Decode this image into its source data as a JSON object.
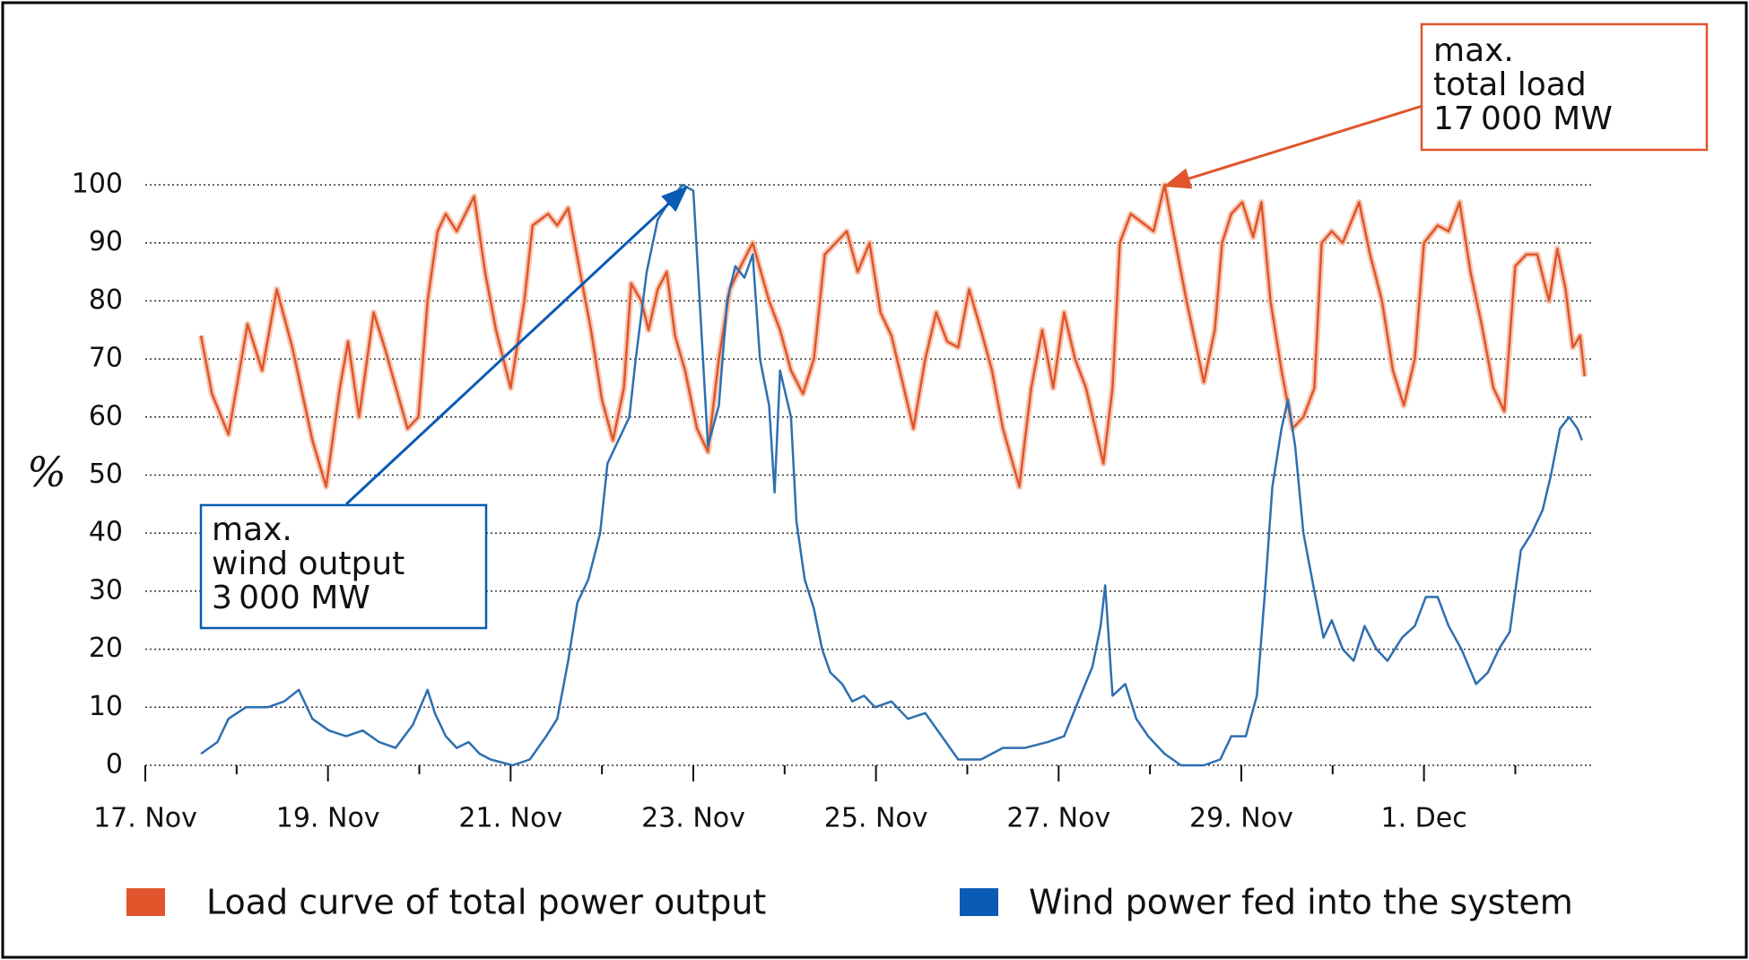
{
  "chart_data": {
    "type": "line",
    "ylabel": "%",
    "xlim": [
      17,
      32.85
    ],
    "xticks": [
      {
        "value": 17,
        "label": "17. Nov"
      },
      {
        "value": 19,
        "label": "19. Nov"
      },
      {
        "value": 21,
        "label": "21. Nov"
      },
      {
        "value": 23,
        "label": "23. Nov"
      },
      {
        "value": 25,
        "label": "25. Nov"
      },
      {
        "value": 27,
        "label": "27. Nov"
      },
      {
        "value": 29,
        "label": "29. Nov"
      },
      {
        "value": 31,
        "label": "1. Dec"
      }
    ],
    "x_minor_ticks": [
      18,
      20,
      22,
      24,
      26,
      28,
      30,
      32
    ],
    "ylim": [
      0,
      100
    ],
    "yticks": [
      0,
      10,
      20,
      30,
      40,
      50,
      60,
      70,
      80,
      90,
      100
    ],
    "grid": true,
    "legend": "bottom",
    "series": [
      {
        "name": "Load curve of total power output",
        "color": "#e0552b",
        "x": [
          17.61,
          17.73,
          17.91,
          18.12,
          18.28,
          18.44,
          18.61,
          18.83,
          18.98,
          19.13,
          19.22,
          19.34,
          19.5,
          19.62,
          19.87,
          19.99,
          20.09,
          20.2,
          20.29,
          20.41,
          20.6,
          20.72,
          20.84,
          21.0,
          21.15,
          21.24,
          21.41,
          21.51,
          21.63,
          21.76,
          21.88,
          22.0,
          22.12,
          22.24,
          22.32,
          22.43,
          22.51,
          22.61,
          22.71,
          22.8,
          22.91,
          23.04,
          23.16,
          23.28,
          23.4,
          23.52,
          23.65,
          23.83,
          23.95,
          24.07,
          24.2,
          24.32,
          24.44,
          24.56,
          24.68,
          24.8,
          24.93,
          25.05,
          25.17,
          25.29,
          25.41,
          25.54,
          25.66,
          25.78,
          25.9,
          26.02,
          26.15,
          26.27,
          26.39,
          26.57,
          26.7,
          26.82,
          26.94,
          27.06,
          27.18,
          27.3,
          27.49,
          27.59,
          27.67,
          27.79,
          28.04,
          28.16,
          28.28,
          28.4,
          28.59,
          28.71,
          28.79,
          28.89,
          29.01,
          29.13,
          29.22,
          29.32,
          29.44,
          29.56,
          29.68,
          29.8,
          29.88,
          29.99,
          30.11,
          30.29,
          30.41,
          30.54,
          30.66,
          30.78,
          30.9,
          31.0,
          31.15,
          31.27,
          31.39,
          31.51,
          31.63,
          31.76,
          31.88,
          32.0,
          32.12,
          32.24,
          32.37,
          32.46,
          32.55,
          32.63,
          32.71,
          32.76
        ],
        "values": [
          74,
          64,
          57,
          76,
          68,
          82,
          72,
          56,
          48,
          65,
          73,
          60,
          78,
          72,
          58,
          60,
          80,
          92,
          95,
          92,
          98,
          85,
          75,
          65,
          80,
          93,
          95,
          93,
          96,
          85,
          75,
          63,
          56,
          65,
          83,
          80,
          75,
          82,
          85,
          74,
          68,
          58,
          54,
          70,
          82,
          86,
          90,
          80,
          75,
          68,
          64,
          70,
          88,
          90,
          92,
          85,
          90,
          78,
          74,
          66,
          58,
          70,
          78,
          73,
          72,
          82,
          75,
          68,
          58,
          48,
          65,
          75,
          65,
          78,
          70,
          65,
          52,
          65,
          90,
          95,
          92,
          100,
          90,
          80,
          66,
          75,
          90,
          95,
          97,
          91,
          97,
          80,
          68,
          58,
          60,
          65,
          90,
          92,
          90,
          97,
          88,
          80,
          68,
          62,
          70,
          90,
          93,
          92,
          97,
          85,
          76,
          65,
          61,
          86,
          88,
          88,
          80,
          89,
          82,
          72,
          74,
          67
        ]
      },
      {
        "name": "Wind power fed into the system",
        "color": "#2e6fb0",
        "x": [
          17.61,
          17.79,
          17.91,
          18.1,
          18.34,
          18.52,
          18.68,
          18.83,
          19.01,
          19.2,
          19.38,
          19.56,
          19.74,
          19.93,
          20.09,
          20.17,
          20.29,
          20.41,
          20.54,
          20.66,
          20.78,
          21.02,
          21.21,
          21.39,
          21.51,
          21.63,
          21.73,
          21.85,
          21.98,
          22.06,
          22.18,
          22.3,
          22.37,
          22.49,
          22.61,
          22.73,
          22.88,
          23.0,
          23.07,
          23.16,
          23.28,
          23.37,
          23.46,
          23.56,
          23.65,
          23.73,
          23.83,
          23.89,
          23.95,
          24.07,
          24.13,
          24.22,
          24.32,
          24.41,
          24.5,
          24.63,
          24.74,
          24.87,
          24.99,
          25.17,
          25.35,
          25.54,
          25.72,
          25.9,
          26.15,
          26.39,
          26.63,
          26.88,
          27.06,
          27.24,
          27.37,
          27.46,
          27.51,
          27.59,
          27.73,
          27.85,
          27.98,
          28.16,
          28.34,
          28.59,
          28.77,
          28.89,
          29.05,
          29.17,
          29.26,
          29.34,
          29.44,
          29.51,
          29.59,
          29.68,
          29.8,
          29.9,
          29.99,
          30.11,
          30.23,
          30.35,
          30.48,
          30.6,
          30.76,
          30.9,
          31.02,
          31.15,
          31.27,
          31.41,
          31.57,
          31.7,
          31.82,
          31.94,
          32.06,
          32.18,
          32.3,
          32.39,
          32.49,
          32.59,
          32.68,
          32.73
        ],
        "values": [
          2,
          4,
          8,
          10,
          10,
          11,
          13,
          8,
          6,
          5,
          6,
          4,
          3,
          7,
          13,
          9,
          5,
          3,
          4,
          2,
          1,
          0,
          1,
          5,
          8,
          18,
          28,
          32,
          40,
          52,
          56,
          60,
          70,
          85,
          94,
          97,
          100,
          99,
          80,
          55,
          62,
          80,
          86,
          84,
          88,
          70,
          62,
          47,
          68,
          60,
          42,
          32,
          27,
          20,
          16,
          14,
          11,
          12,
          10,
          11,
          8,
          9,
          5,
          1,
          1,
          3,
          3,
          4,
          5,
          12,
          17,
          24,
          31,
          12,
          14,
          8,
          5,
          2,
          0,
          0,
          1,
          5,
          5,
          12,
          30,
          48,
          58,
          63,
          55,
          40,
          30,
          22,
          25,
          20,
          18,
          24,
          20,
          18,
          22,
          24,
          29,
          29,
          24,
          20,
          14,
          16,
          20,
          23,
          37,
          40,
          44,
          50,
          58,
          60,
          58,
          56
        ]
      }
    ],
    "annotations": [
      {
        "lines": [
          "max.",
          "wind output",
          "3 000 MW"
        ],
        "color": "#0a5bb4"
      },
      {
        "lines": [
          "max.",
          "total load",
          "17 000 MW"
        ],
        "color": "#e0552b"
      }
    ]
  }
}
